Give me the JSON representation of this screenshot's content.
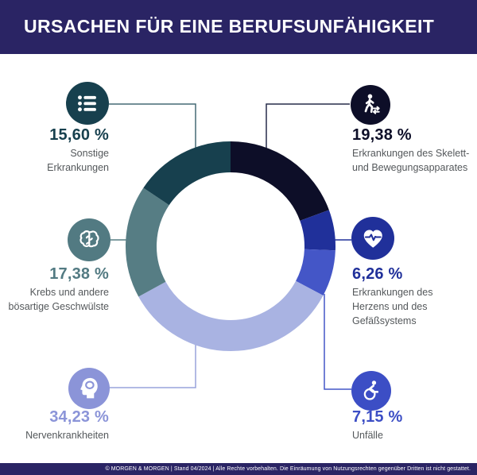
{
  "header": {
    "title": "URSACHEN FÜR EINE BERUFSUNFÄHIGKEIT",
    "bg_color": "#2a2464"
  },
  "chart_data": {
    "type": "pie",
    "variant": "donut",
    "title": "URSACHEN FÜR EINE BERUFSUNFÄHIGKEIT",
    "start_angle_deg": 0,
    "direction": "clockwise",
    "legend_position": "callouts-around-chart",
    "segments": [
      {
        "label": "Erkrankungen des Skelett- und Bewegungsapparates",
        "value": 19.38,
        "value_display": "19,38 %",
        "color": "#0d0e28"
      },
      {
        "label": "Erkrankungen des Herzens und des Gefäßsystems",
        "value": 6.26,
        "value_display": "6,26 %",
        "color": "#20309a"
      },
      {
        "label": "Unfälle",
        "value": 7.15,
        "value_display": "7,15 %",
        "color": "#4456c7"
      },
      {
        "label": "Nervenkrankheiten",
        "value": 34.23,
        "value_display": "34,23 %",
        "color": "#a9b3e2"
      },
      {
        "label": "Krebs und andere bösartige Geschwülste",
        "value": 17.38,
        "value_display": "17,38 %",
        "color": "#567d84"
      },
      {
        "label": "Sonstige Erkrankungen",
        "value": 15.6,
        "value_display": "15,60 %",
        "color": "#17404e"
      }
    ]
  },
  "callouts": [
    {
      "id": "sonstige",
      "icon": "bullet-list-icon",
      "percent": "15,60 %",
      "label": "Sonstige\nErkrankungen",
      "accent_color": "#17404e",
      "line_color": "#456a75"
    },
    {
      "id": "skelett",
      "icon": "walking-person-swap-arrows-icon",
      "percent": "19,38 %",
      "label": "Erkrankungen des Skelett-\nund Bewegungsapparates",
      "accent_color": "#0d0e28",
      "line_color": "#272c4a"
    },
    {
      "id": "krebs",
      "icon": "brain-icon",
      "percent": "17,38 %",
      "label": "Krebs und andere\nbösartige Geschwülste",
      "accent_color": "#527a82",
      "line_color": "#567d84"
    },
    {
      "id": "herz",
      "icon": "heart-pulse-icon",
      "percent": "6,26 %",
      "label": "Erkrankungen des\nHerzens und des\nGefäßsystems",
      "accent_color": "#20309a",
      "line_color": "#20309a"
    },
    {
      "id": "nerven",
      "icon": "head-silhouette-icon",
      "percent": "34,23 %",
      "label": "Nervenkrankheiten",
      "accent_color": "#8b94d8",
      "line_color": "#99a3db"
    },
    {
      "id": "unfall",
      "icon": "wheelchair-icon",
      "percent": "7,15 %",
      "label": "Unfälle",
      "accent_color": "#3c4ec5",
      "line_color": "#4456c7"
    }
  ],
  "footer": {
    "text": "© MORGEN & MORGEN | Stand 04/2024 | Alle Rechte vorbehalten. Die Einräumung von Nutzungsrechten gegenüber Dritten ist nicht gestattet.",
    "bg_color": "#2a2464"
  },
  "colors": {
    "background": "#ffffff",
    "label_text": "#54585b"
  }
}
